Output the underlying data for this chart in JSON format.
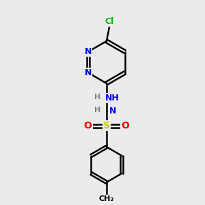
{
  "bg_color": "#ebebeb",
  "atom_colors": {
    "C": "#000000",
    "N": "#0000ee",
    "O": "#ff0000",
    "S": "#cccc00",
    "Cl": "#00bb00",
    "H": "#808080"
  },
  "bond_color": "#000000",
  "bond_width": 1.8,
  "figsize": [
    3.0,
    3.0
  ],
  "dpi": 100
}
